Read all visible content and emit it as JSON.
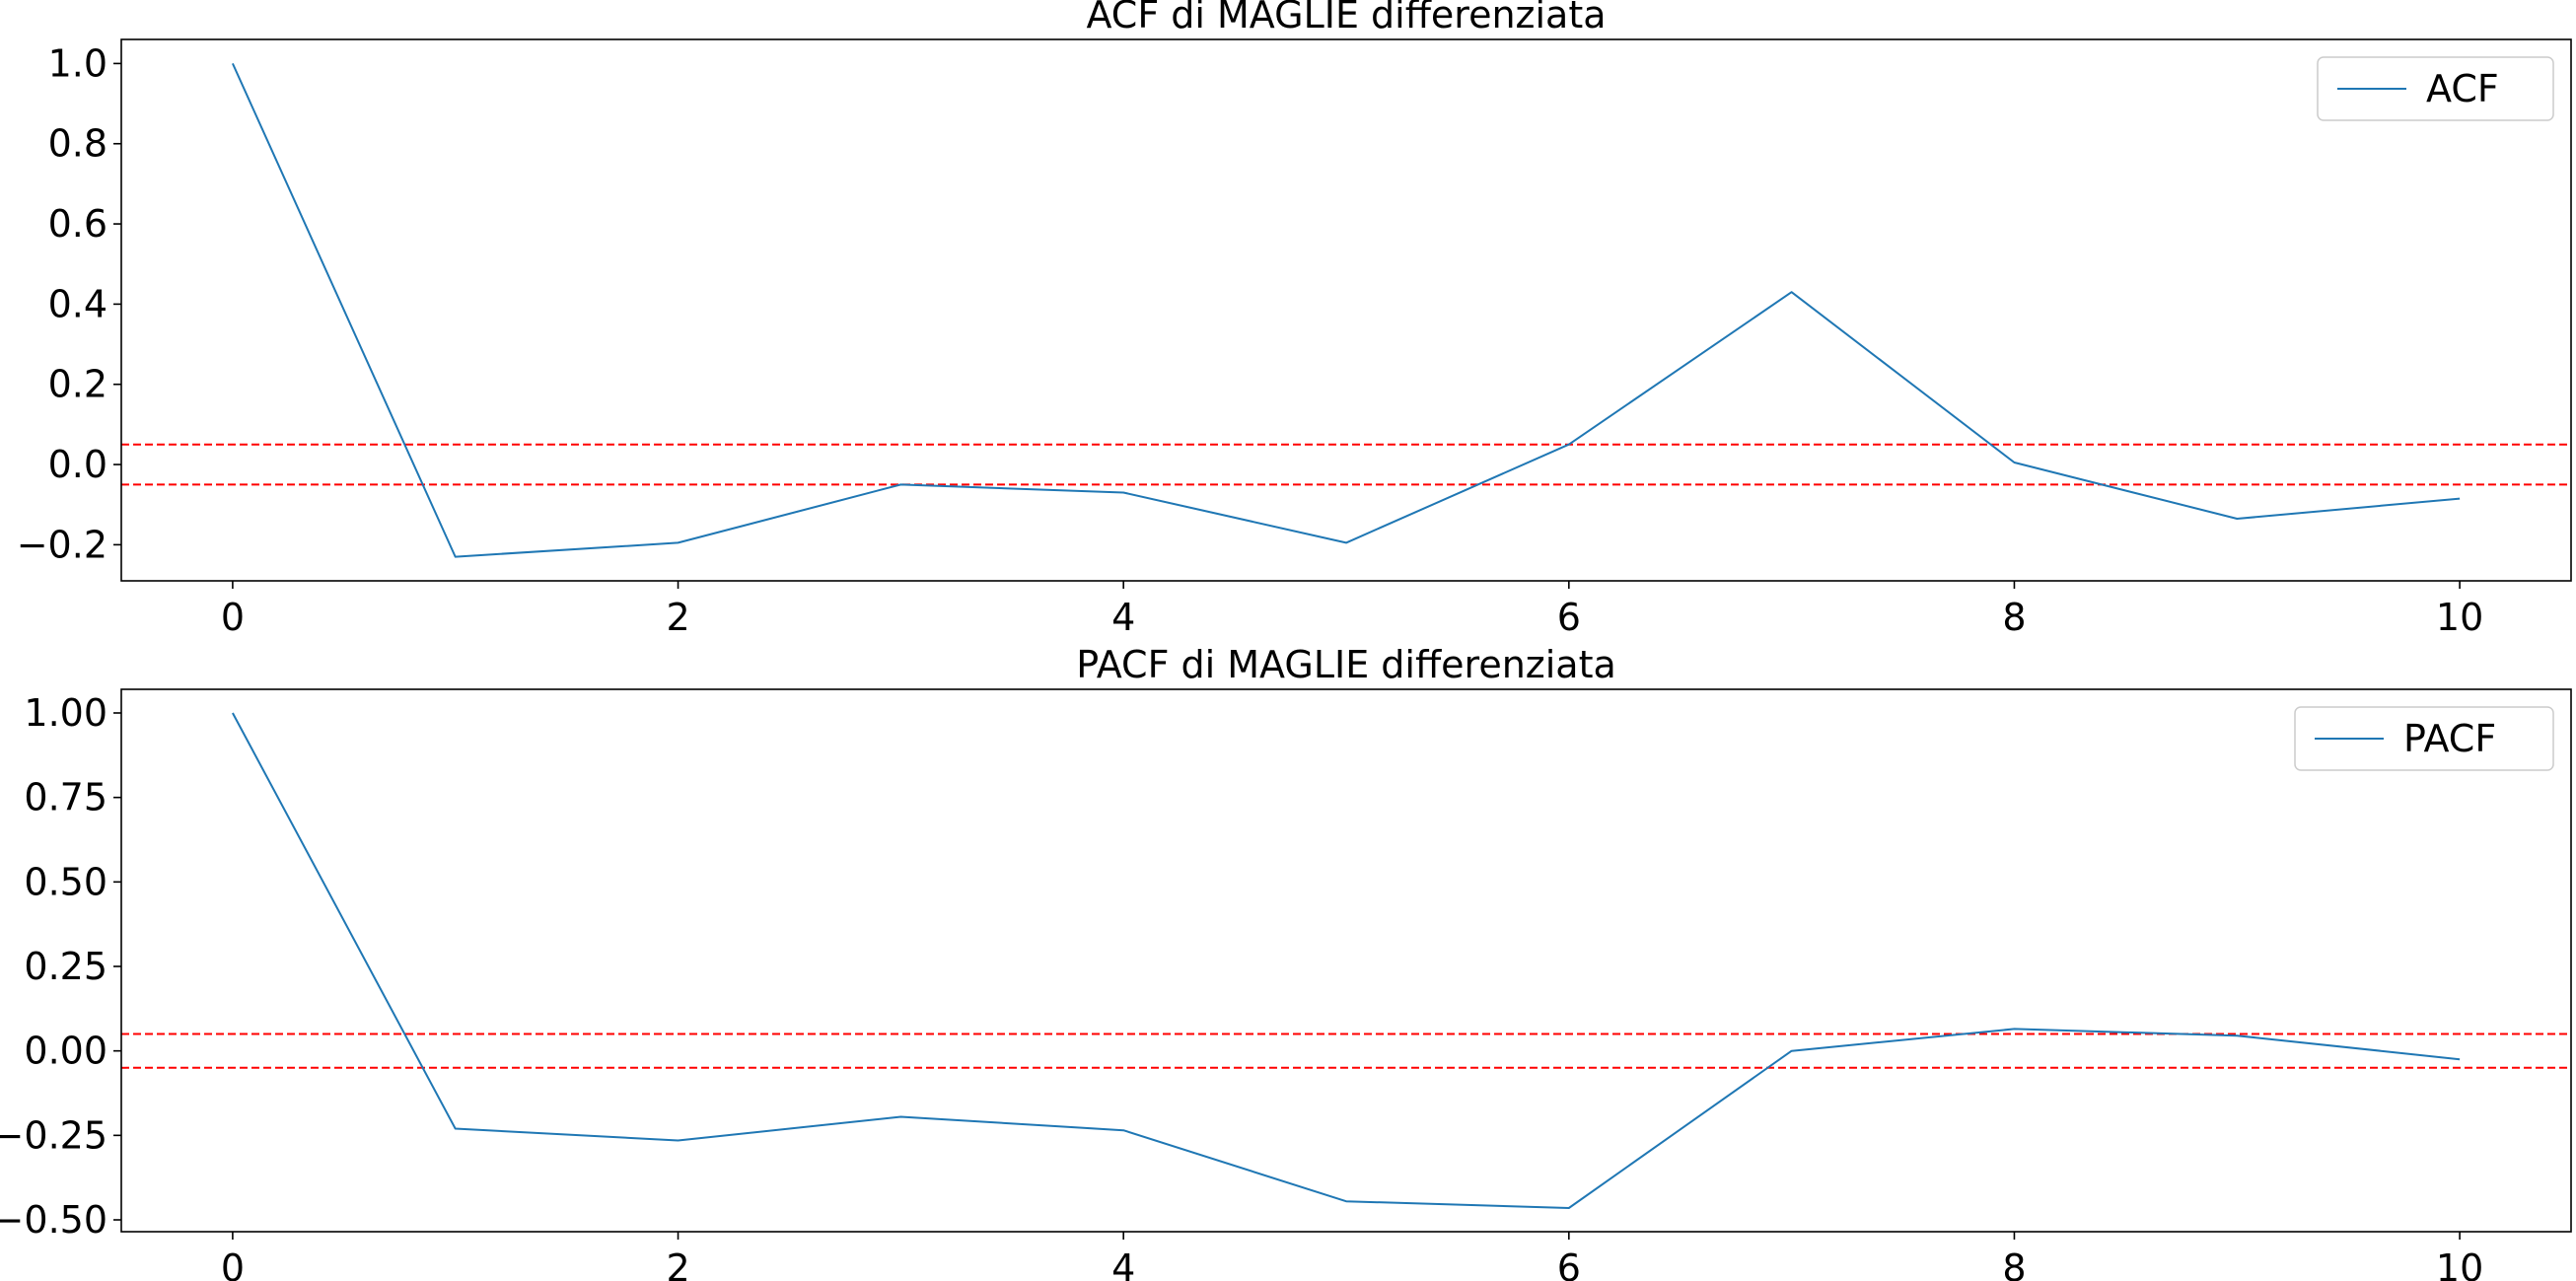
{
  "chart_data": [
    {
      "type": "line",
      "title": "ACF di MAGLIE differenziata",
      "xlabel": "",
      "ylabel": "",
      "x": [
        0,
        1,
        2,
        3,
        4,
        5,
        6,
        7,
        8,
        9,
        10
      ],
      "xlim": [
        -0.5,
        10.5
      ],
      "ylim": [
        -0.29,
        1.06
      ],
      "xticks": [
        0,
        2,
        4,
        6,
        8,
        10
      ],
      "xtick_labels": [
        "0",
        "2",
        "4",
        "6",
        "8",
        "10"
      ],
      "yticks": [
        1.0,
        0.8,
        0.6,
        0.4,
        0.2,
        0.0,
        -0.2
      ],
      "ytick_labels": [
        "1.0",
        "0.8",
        "0.6",
        "0.4",
        "0.2",
        "0.0",
        "−0.2"
      ],
      "series": [
        {
          "name": "ACF",
          "color": "#1f77b4",
          "values": [
            1.0,
            -0.23,
            -0.195,
            -0.05,
            -0.07,
            -0.195,
            0.05,
            0.43,
            0.005,
            -0.135,
            -0.085
          ]
        }
      ],
      "reference_lines": {
        "values": [
          0.05,
          -0.05
        ],
        "color": "#ff0000",
        "style": "dashed"
      },
      "legend": {
        "position": "top-right"
      },
      "grid": false
    },
    {
      "type": "line",
      "title": "PACF di MAGLIE differenziata",
      "xlabel": "",
      "ylabel": "",
      "x": [
        0,
        1,
        2,
        3,
        4,
        5,
        6,
        7,
        8,
        9,
        10
      ],
      "xlim": [
        -0.5,
        10.5
      ],
      "ylim": [
        -0.535,
        1.07
      ],
      "xticks": [
        0,
        2,
        4,
        6,
        8,
        10
      ],
      "xtick_labels": [
        "0",
        "2",
        "4",
        "6",
        "8",
        "10"
      ],
      "yticks": [
        1.0,
        0.75,
        0.5,
        0.25,
        0.0,
        -0.25,
        -0.5
      ],
      "ytick_labels": [
        "1.00",
        "0.75",
        "0.50",
        "0.25",
        "0.00",
        "−0.25",
        "−0.50"
      ],
      "series": [
        {
          "name": "PACF",
          "color": "#1f77b4",
          "values": [
            1.0,
            -0.23,
            -0.265,
            -0.195,
            -0.235,
            -0.445,
            -0.465,
            0.0,
            0.065,
            0.045,
            -0.025
          ]
        }
      ],
      "reference_lines": {
        "values": [
          0.05,
          -0.05
        ],
        "color": "#ff0000",
        "style": "dashed"
      },
      "legend": {
        "position": "top-right"
      },
      "grid": false
    }
  ]
}
